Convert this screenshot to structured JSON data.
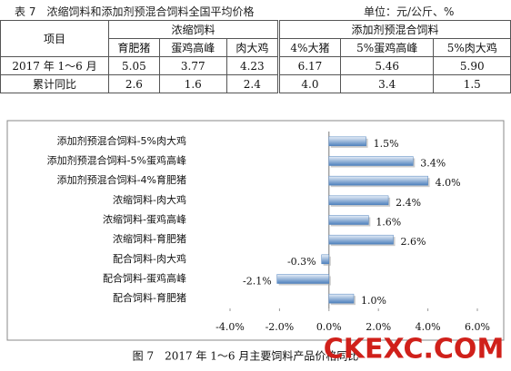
{
  "table": {
    "title": "表 7　浓缩饲料和添加剂预混合饲料全国平均价格",
    "unit": "单位：元/公斤、%",
    "corner": "项目",
    "groups": [
      "浓缩饲料",
      "添加剂预混合饲料"
    ],
    "columns": [
      "育肥猪",
      "蛋鸡高峰",
      "肉大鸡",
      "4%大猪",
      "5%蛋鸡高峰",
      "5%肉大鸡"
    ],
    "rows": [
      [
        "2017 年 1～6 月",
        "5.05",
        "3.77",
        "4.23",
        "6.17",
        "5.46",
        "5.90"
      ],
      [
        "累计同比",
        "2.6",
        "1.6",
        "2.4",
        "4.0",
        "3.4",
        "1.5"
      ]
    ]
  },
  "chart_data": {
    "type": "hbar",
    "categories": [
      "添加剂预混合饲料-5%肉大鸡",
      "添加剂预混合饲料-5%蛋鸡高峰",
      "添加剂预混合饲料-4%育肥猪",
      "浓缩饲料-肉大鸡",
      "浓缩饲料-蛋鸡高峰",
      "浓缩饲料-育肥猪",
      "配合饲料-肉大鸡",
      "配合饲料-蛋鸡高峰",
      "配合饲料-育肥猪"
    ],
    "values": [
      1.5,
      3.4,
      4.0,
      2.4,
      1.6,
      2.6,
      -0.3,
      -2.1,
      1.0
    ],
    "value_labels": [
      "1.5%",
      "3.4%",
      "4.0%",
      "2.4%",
      "1.6%",
      "2.6%",
      "-0.3%",
      "-2.1%",
      "1.0%"
    ],
    "color": "#4f81bd",
    "xlim": [
      -4,
      6
    ],
    "xticks": [
      {
        "value": -4,
        "label": "-4.0%"
      },
      {
        "value": -2,
        "label": "-2.0%"
      },
      {
        "value": 0,
        "label": "0.0%"
      },
      {
        "value": 2,
        "label": "2.0%"
      },
      {
        "value": 4,
        "label": "4.0%"
      },
      {
        "value": 6,
        "label": "6.0%"
      }
    ]
  },
  "caption": "图 7　2017 年 1～6 月主要饲料产品价格同比",
  "watermark": "CKEXC.COM"
}
